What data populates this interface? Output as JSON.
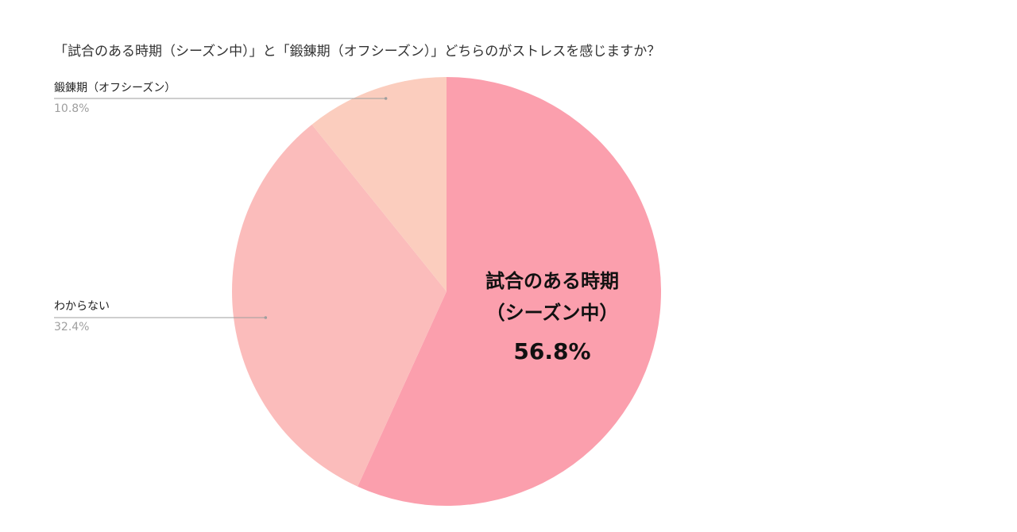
{
  "chart_data": {
    "type": "pie",
    "title": "「試合のある時期（シーズン中）」と「鍛錬期（オフシーズン）」どちらのがストレスを感じますか？",
    "slices": [
      {
        "label": "試合のある時期（シーズン中）",
        "label_lines": [
          "試合のある時期",
          "（シーズン中）"
        ],
        "value": 56.8,
        "display": "56.8%",
        "color": "#fb9fad",
        "label_position": "inside"
      },
      {
        "label": "わからない",
        "label_lines": [
          "わからない"
        ],
        "value": 32.4,
        "display": "32.4%",
        "color": "#fbbcbb",
        "label_position": "outside-left"
      },
      {
        "label": "鍛錬期（オフシーズン）",
        "label_lines": [
          "鍛錬期（オフシーズン）"
        ],
        "value": 10.8,
        "display": "10.8%",
        "color": "#fbcdbe",
        "label_position": "outside-left"
      }
    ],
    "start_angle_deg": 0,
    "direction": "clockwise",
    "legend": "none"
  }
}
